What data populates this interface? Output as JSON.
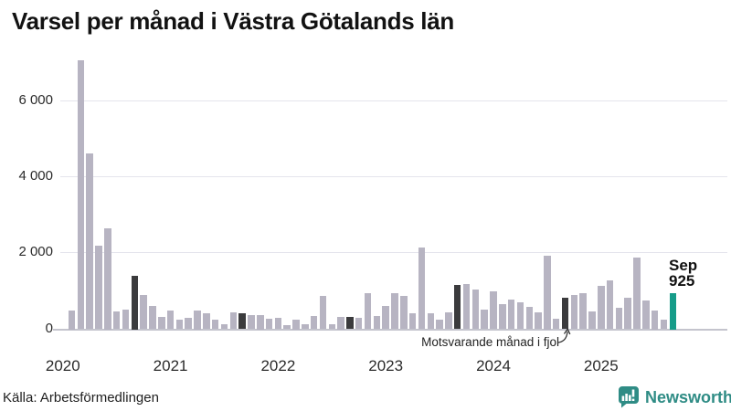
{
  "title": "Varsel per månad i Västra Götalands län",
  "annotation": {
    "text": "Motsvarande månad i fjol"
  },
  "value_label": {
    "line1": "Sep",
    "line2": "925"
  },
  "footer": {
    "source": "Källa: Arbetsförmedlingen",
    "brand": "Newsworthy"
  },
  "colors": {
    "bar": "#b7b4c2",
    "dark_bar": "#3b3b3d",
    "highlight_bar": "#169c89",
    "brand_teal": "#2f8c85",
    "gridline": "#e4e4ec",
    "baseline": "#c4c4cd"
  },
  "chart_data": {
    "type": "bar",
    "title": "Varsel per månad i Västra Götalands län",
    "ylabel": "",
    "xlabel": "",
    "frequency": "monthly",
    "x_start": "2020-02",
    "x_end": "2025-09",
    "values": [
      480,
      7040,
      4600,
      2180,
      2640,
      450,
      500,
      1380,
      880,
      580,
      290,
      470,
      230,
      280,
      480,
      400,
      230,
      100,
      430,
      400,
      350,
      360,
      250,
      280,
      90,
      240,
      110,
      330,
      860,
      100,
      300,
      290,
      270,
      920,
      330,
      580,
      930,
      860,
      400,
      2120,
      390,
      230,
      430,
      1130,
      1160,
      1010,
      500,
      970,
      640,
      760,
      690,
      560,
      430,
      1920,
      260,
      815,
      870,
      930,
      450,
      1110,
      1250,
      550,
      815,
      1870,
      740,
      480,
      230,
      925
    ],
    "dark_indices": [
      7,
      19,
      31,
      43,
      55
    ],
    "dark_meaning": "Motsvarande månad i fjol (september föregående år)",
    "highlight_index": 67,
    "highlight_label": {
      "month": "Sep",
      "value": 925
    },
    "x_tick_labels": [
      "2020",
      "2021",
      "2022",
      "2023",
      "2024",
      "2025"
    ],
    "x_tick_indices": [
      -1,
      11,
      23,
      35,
      47,
      59
    ],
    "y_tick_labels": [
      "0",
      "2 000",
      "4 000",
      "6 000"
    ],
    "y_tick_values": [
      0,
      2000,
      4000,
      6000
    ],
    "ylim": [
      0,
      7200
    ],
    "grid": true,
    "legend_position": "none"
  }
}
